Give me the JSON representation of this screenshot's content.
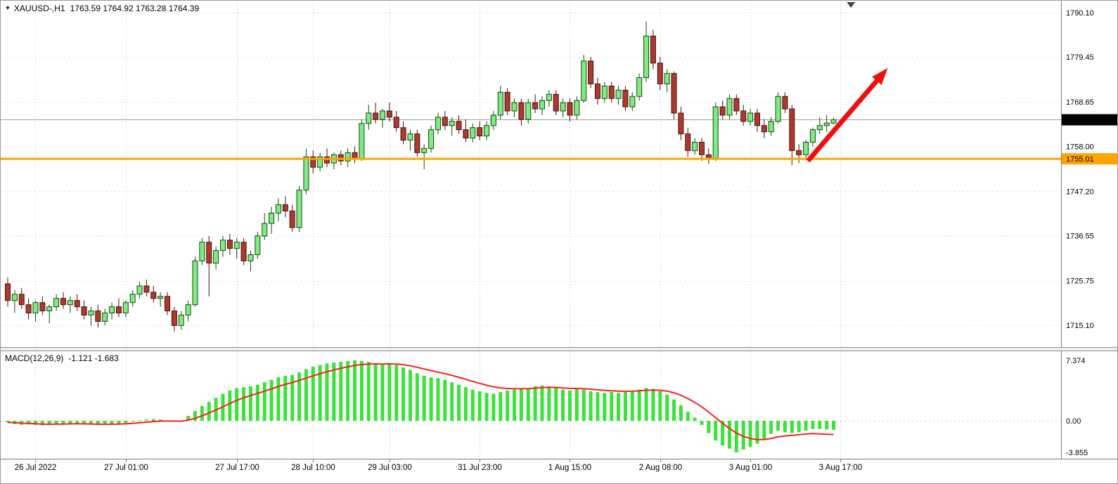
{
  "window": {
    "symbol_period": "XAUUSD-,H1",
    "ohlc_text": "1763.59 1764.92 1763.28 1764.39",
    "dropdown_icon": "▼"
  },
  "chart_data": {
    "type": "candlestick",
    "symbol": "XAUUSD-",
    "timeframe": "H1",
    "title": "XAUUSD-,H1 1763.59 1764.92 1763.28 1764.39",
    "current_bar": {
      "open": 1763.59,
      "high": 1764.92,
      "low": 1763.28,
      "close": 1764.39
    },
    "ylim_main": [
      1710.0,
      1792.3
    ],
    "price_axis": {
      "gridlines": [
        1790.1,
        1779.45,
        1768.65,
        1758.0,
        1747.2,
        1736.55,
        1725.75,
        1715.1
      ],
      "current_price": 1764.39,
      "support_level": 1755.01
    },
    "time_axis": {
      "labels": [
        {
          "text": "26 Jul 2022",
          "index": 4
        },
        {
          "text": "27 Jul 01:00",
          "index": 17
        },
        {
          "text": "27 Jul 17:00",
          "index": 33
        },
        {
          "text": "28 Jul 10:00",
          "index": 44
        },
        {
          "text": "29 Jul 03:00",
          "index": 55
        },
        {
          "text": "31 Jul 23:00",
          "index": 68
        },
        {
          "text": "1 Aug 15:00",
          "index": 81
        },
        {
          "text": "2 Aug 08:00",
          "index": 94
        },
        {
          "text": "3 Aug 01:00",
          "index": 107
        },
        {
          "text": "3 Aug 17:00",
          "index": 120
        }
      ]
    },
    "candles": [
      [
        1725,
        1726.5,
        1719.5,
        1721
      ],
      [
        1721,
        1723.5,
        1718,
        1722.5
      ],
      [
        1722.5,
        1724,
        1719,
        1720
      ],
      [
        1720,
        1721.5,
        1716.5,
        1718
      ],
      [
        1718,
        1721,
        1716,
        1720.5
      ],
      [
        1720.5,
        1722,
        1717.5,
        1718.5
      ],
      [
        1718.5,
        1720,
        1715.5,
        1719.5
      ],
      [
        1719.5,
        1722.5,
        1718.5,
        1721.5
      ],
      [
        1721.5,
        1723,
        1719,
        1720
      ],
      [
        1720,
        1722,
        1718,
        1721
      ],
      [
        1721,
        1722.5,
        1718.5,
        1719.5
      ],
      [
        1719.5,
        1721,
        1716.5,
        1717.5
      ],
      [
        1717.5,
        1719.5,
        1715,
        1718.5
      ],
      [
        1718.5,
        1720,
        1714.5,
        1716
      ],
      [
        1716,
        1719,
        1715,
        1718
      ],
      [
        1718,
        1720.5,
        1716.5,
        1719.5
      ],
      [
        1719.5,
        1721.5,
        1717,
        1718
      ],
      [
        1718,
        1721,
        1717,
        1720.5
      ],
      [
        1720.5,
        1723.5,
        1719.5,
        1722.5
      ],
      [
        1722.5,
        1725.5,
        1721.5,
        1724.5
      ],
      [
        1724.5,
        1726,
        1722,
        1723
      ],
      [
        1723,
        1724.5,
        1720.5,
        1721.5
      ],
      [
        1721.5,
        1723,
        1719.5,
        1722
      ],
      [
        1722,
        1723,
        1717.5,
        1718.5
      ],
      [
        1718.5,
        1719.5,
        1713.5,
        1715
      ],
      [
        1715,
        1718.5,
        1714,
        1717.5
      ],
      [
        1717.5,
        1721,
        1716,
        1720
      ],
      [
        1720,
        1731.5,
        1719.5,
        1730.5
      ],
      [
        1730.5,
        1736,
        1729.5,
        1735
      ],
      [
        1735,
        1736.5,
        1722,
        1730
      ],
      [
        1730,
        1734,
        1728.5,
        1733
      ],
      [
        1733,
        1736.5,
        1731.5,
        1735.5
      ],
      [
        1735.5,
        1737,
        1732,
        1733.5
      ],
      [
        1733.5,
        1736,
        1731,
        1735
      ],
      [
        1735,
        1736,
        1729.5,
        1730.5
      ],
      [
        1730.5,
        1733,
        1728,
        1732
      ],
      [
        1732,
        1737.5,
        1731,
        1736.5
      ],
      [
        1736.5,
        1742,
        1735.5,
        1739.5
      ],
      [
        1739.5,
        1743.5,
        1737,
        1742
      ],
      [
        1742,
        1745.5,
        1740,
        1744
      ],
      [
        1744,
        1746,
        1741,
        1742.5
      ],
      [
        1742.5,
        1744,
        1737.5,
        1738.5
      ],
      [
        1738.5,
        1748.5,
        1737.5,
        1747.5
      ],
      [
        1747.5,
        1757.5,
        1746.5,
        1755.5
      ],
      [
        1755.5,
        1757,
        1751.5,
        1753
      ],
      [
        1753,
        1756.5,
        1752,
        1755.5
      ],
      [
        1755.5,
        1757.5,
        1753,
        1754
      ],
      [
        1754,
        1756.5,
        1752.5,
        1756
      ],
      [
        1756,
        1757,
        1753.5,
        1754.5
      ],
      [
        1754.5,
        1757.5,
        1753,
        1756.5
      ],
      [
        1756.5,
        1758,
        1754,
        1755
      ],
      [
        1755,
        1764.5,
        1754.5,
        1763.5
      ],
      [
        1763.5,
        1768,
        1762,
        1766
      ],
      [
        1766,
        1768.5,
        1763.5,
        1764.5
      ],
      [
        1764.5,
        1767,
        1762.5,
        1766.5
      ],
      [
        1766.5,
        1768.5,
        1764,
        1765
      ],
      [
        1765,
        1766.5,
        1761.5,
        1762.5
      ],
      [
        1762.5,
        1764,
        1758.5,
        1759.5
      ],
      [
        1759.5,
        1762,
        1757,
        1761
      ],
      [
        1761,
        1762,
        1755.5,
        1756.5
      ],
      [
        1756.5,
        1758.5,
        1752.5,
        1757.5
      ],
      [
        1757.5,
        1763,
        1756.5,
        1762
      ],
      [
        1762,
        1766,
        1761,
        1765
      ],
      [
        1765,
        1766.5,
        1762,
        1763
      ],
      [
        1763,
        1765,
        1760.5,
        1764
      ],
      [
        1764,
        1765.5,
        1761,
        1762
      ],
      [
        1762,
        1764.5,
        1759,
        1760
      ],
      [
        1760,
        1763.5,
        1759,
        1762.5
      ],
      [
        1762.5,
        1764,
        1759.5,
        1760.5
      ],
      [
        1760.5,
        1764,
        1759.5,
        1763
      ],
      [
        1763,
        1766.5,
        1762,
        1765.5
      ],
      [
        1765.5,
        1772.5,
        1764.5,
        1771
      ],
      [
        1771,
        1772,
        1765.5,
        1766.5
      ],
      [
        1766.5,
        1769.5,
        1765,
        1768.5
      ],
      [
        1768.5,
        1769.5,
        1763,
        1764.5
      ],
      [
        1764.5,
        1769.5,
        1763.5,
        1768.5
      ],
      [
        1768.5,
        1770.5,
        1766,
        1767
      ],
      [
        1767,
        1770,
        1765.5,
        1769
      ],
      [
        1769,
        1771.5,
        1767.5,
        1770.5
      ],
      [
        1770.5,
        1771.5,
        1765.5,
        1766.5
      ],
      [
        1766.5,
        1769.5,
        1765,
        1768.5
      ],
      [
        1768.5,
        1769.5,
        1764,
        1765.5
      ],
      [
        1765.5,
        1770,
        1764.5,
        1769
      ],
      [
        1769,
        1780,
        1768.5,
        1778.5
      ],
      [
        1778.5,
        1779.5,
        1772,
        1773
      ],
      [
        1773,
        1774.5,
        1768,
        1769.5
      ],
      [
        1769.5,
        1773.5,
        1768.5,
        1772.5
      ],
      [
        1772.5,
        1773.5,
        1768.5,
        1769.5
      ],
      [
        1769.5,
        1772.5,
        1768,
        1771.5
      ],
      [
        1771.5,
        1772.5,
        1766.5,
        1767.5
      ],
      [
        1767.5,
        1771,
        1766.5,
        1770
      ],
      [
        1770,
        1775.5,
        1769,
        1774.5
      ],
      [
        1774.5,
        1788,
        1773.5,
        1784.5
      ],
      [
        1784.5,
        1786,
        1776.5,
        1778
      ],
      [
        1778,
        1779.5,
        1771.5,
        1773
      ],
      [
        1773,
        1776.5,
        1771,
        1775.5
      ],
      [
        1775.5,
        1776,
        1764.5,
        1766
      ],
      [
        1766,
        1767.5,
        1759.5,
        1761
      ],
      [
        1761,
        1762.5,
        1755.5,
        1757
      ],
      [
        1757,
        1760,
        1756,
        1759
      ],
      [
        1759,
        1760,
        1754.5,
        1756
      ],
      [
        1756,
        1757.5,
        1753.8,
        1755.2
      ],
      [
        1755.2,
        1768.5,
        1754.5,
        1767.5
      ],
      [
        1767.5,
        1769,
        1764.5,
        1765.5
      ],
      [
        1765.5,
        1770.5,
        1764.5,
        1769.5
      ],
      [
        1769.5,
        1770.5,
        1765.5,
        1766.5
      ],
      [
        1766.5,
        1768,
        1763,
        1764
      ],
      [
        1764,
        1767,
        1763,
        1766
      ],
      [
        1766,
        1767,
        1761.5,
        1763
      ],
      [
        1763,
        1764.5,
        1760,
        1761.5
      ],
      [
        1761.5,
        1765,
        1760.5,
        1764
      ],
      [
        1764,
        1771,
        1763.5,
        1770
      ],
      [
        1770,
        1771,
        1766,
        1767
      ],
      [
        1767,
        1768,
        1753.5,
        1757
      ],
      [
        1757,
        1758.5,
        1754,
        1756
      ],
      [
        1756,
        1759.5,
        1755,
        1759
      ],
      [
        1759,
        1762.5,
        1758,
        1762
      ],
      [
        1762,
        1765,
        1761,
        1763
      ],
      [
        1763,
        1765.5,
        1761.5,
        1763.6
      ],
      [
        1763.59,
        1764.92,
        1763.28,
        1764.39
      ]
    ],
    "indicator": {
      "name": "MACD(12,26,9)",
      "values_text": "-1.121 -1.683",
      "main_value": -1.121,
      "signal_value": -1.683,
      "ylim": [
        -4.37,
        8.4
      ],
      "axis_labels": [
        {
          "text": "7.374",
          "value": 7.374
        },
        {
          "text": "0.00",
          "value": 0
        },
        {
          "text": "-3.855",
          "value": -3.855
        }
      ],
      "histogram": [
        -0.2,
        -0.4,
        -0.5,
        -0.45,
        -0.5,
        -0.55,
        -0.5,
        -0.4,
        -0.35,
        -0.3,
        -0.35,
        -0.4,
        -0.45,
        -0.5,
        -0.45,
        -0.4,
        -0.35,
        -0.25,
        -0.1,
        0.05,
        0.15,
        0.2,
        0.15,
        0.05,
        -0.1,
        -0.05,
        0.6,
        1.2,
        1.8,
        2.3,
        2.8,
        3.3,
        3.7,
        4.0,
        4.1,
        4.2,
        4.4,
        4.7,
        5.0,
        5.3,
        5.5,
        5.6,
        5.9,
        6.3,
        6.6,
        6.8,
        7.0,
        7.1,
        7.2,
        7.3,
        7.374,
        7.3,
        7.2,
        7.0,
        6.9,
        7.0,
        6.8,
        6.5,
        6.2,
        5.8,
        5.5,
        5.3,
        5.2,
        5.0,
        4.7,
        4.4,
        4.1,
        3.8,
        3.6,
        3.4,
        3.3,
        3.5,
        3.7,
        3.8,
        3.9,
        4.0,
        4.2,
        4.3,
        4.2,
        4.0,
        3.8,
        3.7,
        3.9,
        3.8,
        3.6,
        3.5,
        3.4,
        3.5,
        3.4,
        3.5,
        3.7,
        3.8,
        4.0,
        3.9,
        3.6,
        3.2,
        2.6,
        1.9,
        1.1,
        0.4,
        -0.5,
        -1.5,
        -2.4,
        -3.0,
        -3.4,
        -3.855,
        -3.5,
        -3.2,
        -2.8,
        -2.3,
        -1.6,
        -1.2,
        -1.4,
        -1.5,
        -1.4,
        -1.2,
        -1.0,
        -1.0,
        -1.05,
        -1.121
      ],
      "signal": [
        -0.2,
        -0.24,
        -0.29,
        -0.32,
        -0.36,
        -0.4,
        -0.42,
        -0.41,
        -0.4,
        -0.38,
        -0.37,
        -0.38,
        -0.39,
        -0.42,
        -0.42,
        -0.42,
        -0.4,
        -0.37,
        -0.32,
        -0.24,
        -0.17,
        -0.09,
        -0.04,
        -0.03,
        -0.04,
        -0.04,
        0.09,
        0.31,
        0.61,
        0.95,
        1.32,
        1.71,
        2.11,
        2.49,
        2.81,
        3.09,
        3.35,
        3.62,
        3.9,
        4.18,
        4.44,
        4.67,
        4.92,
        5.2,
        5.48,
        5.74,
        5.99,
        6.21,
        6.41,
        6.59,
        6.75,
        6.86,
        6.92,
        6.94,
        6.93,
        6.95,
        6.92,
        6.83,
        6.71,
        6.53,
        6.32,
        6.12,
        5.93,
        5.75,
        5.54,
        5.31,
        5.07,
        4.81,
        4.57,
        4.34,
        4.13,
        4.0,
        3.94,
        3.91,
        3.91,
        3.93,
        3.98,
        4.05,
        4.08,
        4.06,
        4.01,
        3.95,
        3.94,
        3.91,
        3.85,
        3.78,
        3.7,
        3.66,
        3.61,
        3.59,
        3.61,
        3.65,
        3.72,
        3.75,
        3.72,
        3.62,
        3.42,
        3.11,
        2.71,
        2.25,
        1.7,
        1.06,
        0.37,
        -0.31,
        -0.93,
        -1.5,
        -1.9,
        -2.16,
        -2.29,
        -2.29,
        -2.15,
        -1.96,
        -1.85,
        -1.78,
        -1.7,
        -1.62,
        -1.55,
        -1.6,
        -1.65,
        -1.683
      ]
    },
    "annotations": {
      "support_hline": {
        "price": 1755.01,
        "color": "#ffa500",
        "width": 3
      },
      "trend_arrow": {
        "from_index": 115.3,
        "from_price": 1754.5,
        "to_index": 126.8,
        "to_price": 1776.8,
        "color": "#ee1010"
      },
      "shift_marker_index": 121.5
    }
  },
  "colors": {
    "background": "#ffffff",
    "bull_fill": "#84e884",
    "bull_border": "#0b4d0b",
    "bear_fill": "#ad3a31",
    "bear_border": "#46100a",
    "grid_vertical": "#c2c2c2",
    "grid_horizontal": "#dedede",
    "current_price_line": "#a0a0a0",
    "support_line": "#ffa500",
    "macd_histogram": "#3ae23a",
    "macd_signal": "#ff1e1e",
    "trend_arrow": "#ee1010",
    "axis_line": "#7a7a7a",
    "tag_current_bg": "#000000",
    "tag_text": "#ffffff"
  }
}
